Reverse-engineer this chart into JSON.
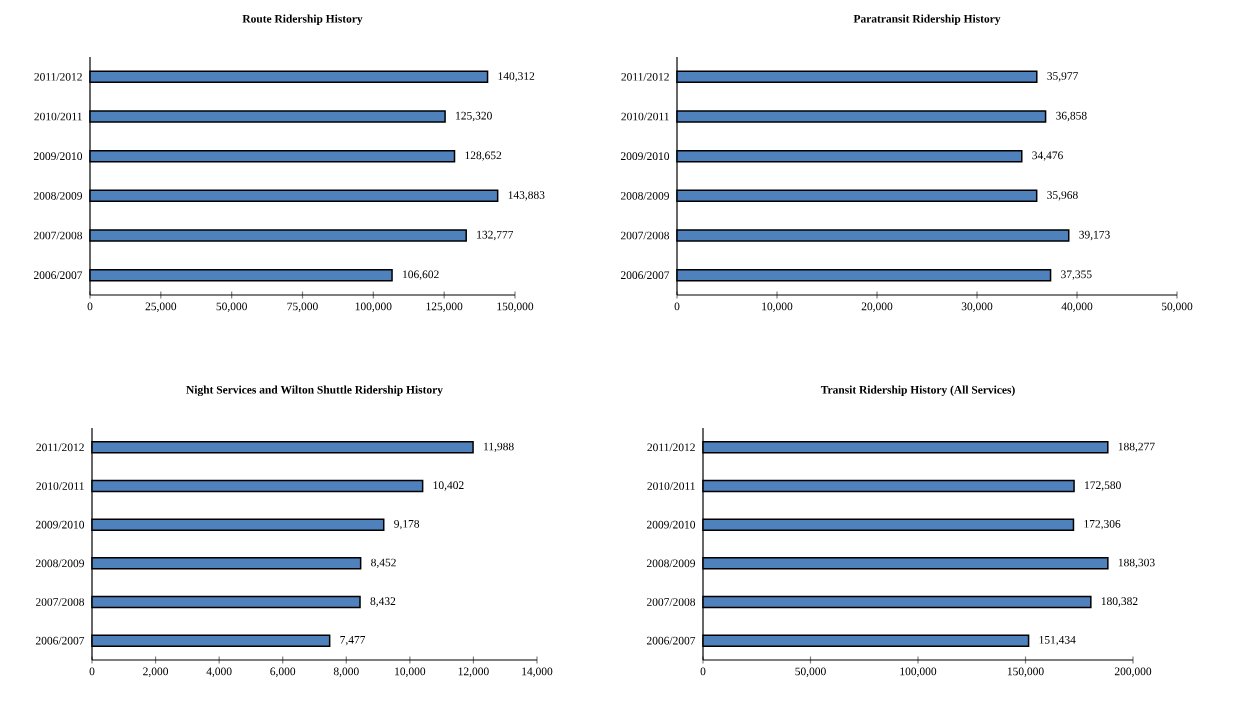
{
  "chart_data": [
    {
      "type": "bar",
      "orientation": "horizontal",
      "title": "Route Ridership History",
      "categories": [
        "2011/2012",
        "2010/2011",
        "2009/2010",
        "2008/2009",
        "2007/2008",
        "2006/2007"
      ],
      "values": [
        140312,
        125320,
        128652,
        143883,
        132777,
        106602
      ],
      "value_labels": [
        "140,312",
        "125,320",
        "128,652",
        "143,883",
        "132,777",
        "106,602"
      ],
      "color": "#4f81bd",
      "xlim": [
        0,
        150000
      ],
      "xticks": [
        0,
        {
          "value": 25000,
          "label": "25,000"
        },
        {
          "value": 50000,
          "label": "50,000"
        },
        {
          "value": 75000,
          "label": "75,000"
        },
        {
          "value": 100000,
          "label": "100,000"
        },
        {
          "value": 125000,
          "label": "125,000"
        },
        {
          "value": 150000,
          "label": "150,000"
        }
      ]
    },
    {
      "type": "bar",
      "orientation": "horizontal",
      "title": "Paratransit Ridership History",
      "categories": [
        "2011/2012",
        "2010/2011",
        "2009/2010",
        "2008/2009",
        "2007/2008",
        "2006/2007"
      ],
      "values": [
        35977,
        36858,
        34476,
        35968,
        39173,
        37355
      ],
      "value_labels": [
        "35,977",
        "36,858",
        "34,476",
        "35,968",
        "39,173",
        "37,355"
      ],
      "color": "#4f81bd",
      "xlim": [
        0,
        50000
      ],
      "xticks": [
        0,
        {
          "value": 10000,
          "label": "10,000"
        },
        {
          "value": 20000,
          "label": "20,000"
        },
        {
          "value": 30000,
          "label": "30,000"
        },
        {
          "value": 40000,
          "label": "40,000"
        },
        {
          "value": 50000,
          "label": "50,000"
        }
      ]
    },
    {
      "type": "bar",
      "orientation": "horizontal",
      "title": "Night Services and Wilton Shuttle Ridership History",
      "categories": [
        "2011/2012",
        "2010/2011",
        "2009/2010",
        "2008/2009",
        "2007/2008",
        "2006/2007"
      ],
      "values": [
        11988,
        10402,
        9178,
        8452,
        8432,
        7477
      ],
      "value_labels": [
        "11,988",
        "10,402",
        "9,178",
        "8,452",
        "8,432",
        "7,477"
      ],
      "color": "#4f81bd",
      "xlim": [
        0,
        14000
      ],
      "xticks": [
        0,
        {
          "value": 2000,
          "label": "2,000"
        },
        {
          "value": 4000,
          "label": "4,000"
        },
        {
          "value": 6000,
          "label": "6,000"
        },
        {
          "value": 8000,
          "label": "8,000"
        },
        {
          "value": 10000,
          "label": "10,000"
        },
        {
          "value": 12000,
          "label": "12,000"
        },
        {
          "value": 14000,
          "label": "14,000"
        }
      ]
    },
    {
      "type": "bar",
      "orientation": "horizontal",
      "title": "Transit Ridership History (All Services)",
      "categories": [
        "2011/2012",
        "2010/2011",
        "2009/2010",
        "2008/2009",
        "2007/2008",
        "2006/2007"
      ],
      "values": [
        188277,
        172580,
        172306,
        188303,
        180382,
        151434
      ],
      "value_labels": [
        "188,277",
        "172,580",
        "172,306",
        "188,303",
        "180,382",
        "151,434"
      ],
      "color": "#4f81bd",
      "xlim": [
        0,
        200000
      ],
      "xticks": [
        0,
        {
          "value": 50000,
          "label": "50,000"
        },
        {
          "value": 100000,
          "label": "100,000"
        },
        {
          "value": 150000,
          "label": "150,000"
        },
        {
          "value": 200000,
          "label": "200,000"
        }
      ]
    }
  ]
}
